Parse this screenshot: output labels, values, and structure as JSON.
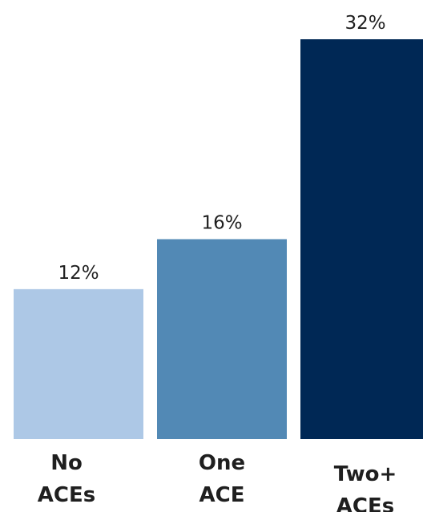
{
  "chart_data": {
    "type": "bar",
    "categories": [
      [
        "No",
        "ACEs"
      ],
      [
        "One",
        "ACE"
      ],
      [
        "Two+",
        "ACEs"
      ]
    ],
    "values": [
      12,
      16,
      32
    ],
    "value_labels": [
      "12%",
      "16%",
      "32%"
    ],
    "colors": [
      "#adc8e6",
      "#5289b5",
      "#002855"
    ],
    "title": "",
    "xlabel": "",
    "ylabel": "",
    "ylim": [
      0,
      32
    ],
    "grid": false,
    "legend": "none"
  }
}
